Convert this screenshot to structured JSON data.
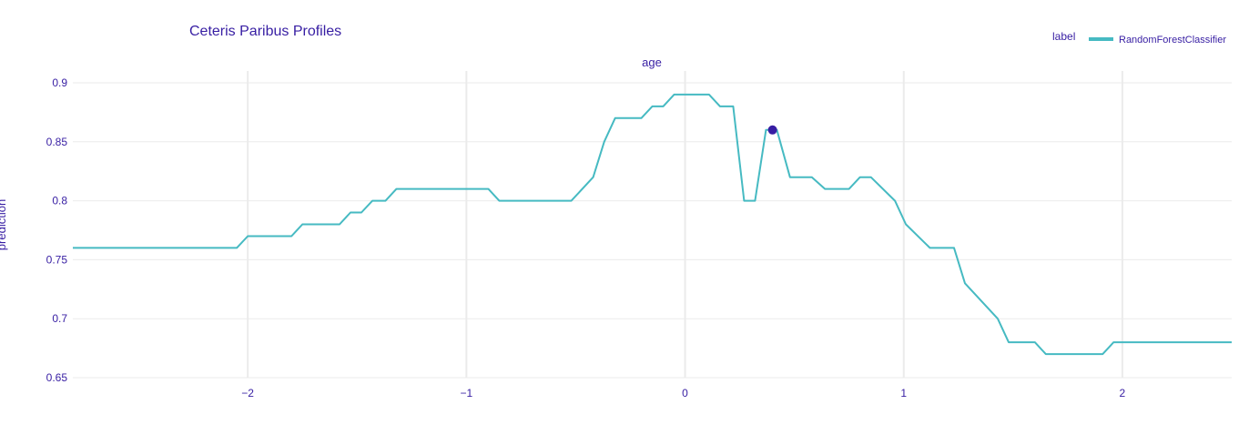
{
  "chart_data": {
    "type": "line",
    "title": "Ceteris Paribus Profiles",
    "subtitle": "age",
    "xlabel": "",
    "ylabel": "prediction",
    "xlim": [
      -2.8,
      2.5
    ],
    "ylim": [
      0.65,
      0.91
    ],
    "x_ticks": [
      -2,
      -1,
      0,
      1,
      2
    ],
    "x_tick_labels": [
      "−2",
      "−1",
      "0",
      "1",
      "2"
    ],
    "y_ticks": [
      0.65,
      0.7,
      0.75,
      0.8,
      0.85,
      0.9
    ],
    "y_tick_labels": [
      "0.65",
      "0.7",
      "0.75",
      "0.8",
      "0.85",
      "0.9"
    ],
    "grid": true,
    "legend": {
      "title": "label",
      "placement": "top-right"
    },
    "series": [
      {
        "name": "RandomForestClassifier",
        "color": "#46bac2",
        "x": [
          -2.8,
          -2.05,
          -2.0,
          -1.8,
          -1.75,
          -1.58,
          -1.53,
          -1.48,
          -1.43,
          -1.37,
          -1.32,
          -0.9,
          -0.85,
          -0.52,
          -0.42,
          -0.37,
          -0.32,
          -0.2,
          -0.15,
          -0.1,
          -0.05,
          0.11,
          0.16,
          0.22,
          0.27,
          0.32,
          0.37,
          0.42,
          0.48,
          0.58,
          0.64,
          0.75,
          0.8,
          0.85,
          0.96,
          1.01,
          1.12,
          1.23,
          1.28,
          1.43,
          1.48,
          1.6,
          1.65,
          1.91,
          1.96,
          2.5
        ],
        "y": [
          0.76,
          0.76,
          0.77,
          0.77,
          0.78,
          0.78,
          0.79,
          0.79,
          0.8,
          0.8,
          0.81,
          0.81,
          0.8,
          0.8,
          0.82,
          0.85,
          0.87,
          0.87,
          0.88,
          0.88,
          0.89,
          0.89,
          0.88,
          0.88,
          0.8,
          0.8,
          0.86,
          0.86,
          0.82,
          0.82,
          0.81,
          0.81,
          0.82,
          0.82,
          0.8,
          0.78,
          0.76,
          0.76,
          0.73,
          0.7,
          0.68,
          0.68,
          0.67,
          0.67,
          0.68,
          0.68
        ]
      }
    ],
    "observation": {
      "x": 0.4,
      "y": 0.86,
      "color": "#371ea3"
    }
  }
}
